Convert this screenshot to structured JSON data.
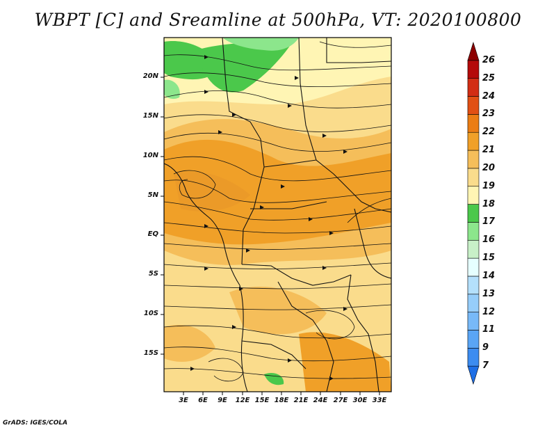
{
  "title": "WBPT [C] and Sreamline at 500hPa, VT: 2020100800",
  "footer": "GrADS: IGES/COLA",
  "lat_ticks": [
    "20N",
    "15N",
    "10N",
    "5N",
    "EQ",
    "5S",
    "10S",
    "15S"
  ],
  "lon_ticks": [
    "3E",
    "6E",
    "9E",
    "12E",
    "15E",
    "18E",
    "21E",
    "24E",
    "27E",
    "30E",
    "33E"
  ],
  "colorbar": {
    "levels": [
      "7",
      "9",
      "11",
      "12",
      "13",
      "14",
      "15",
      "16",
      "17",
      "18",
      "19",
      "20",
      "21",
      "22",
      "23",
      "24",
      "25",
      "26"
    ],
    "colors": [
      "#1e6fe6",
      "#3c8cf0",
      "#5aa5f5",
      "#78b9f8",
      "#96cdfa",
      "#b4e0fc",
      "#e6ffff",
      "#c8f0c8",
      "#8ce68c",
      "#4bc84b",
      "#fff5b4",
      "#fadc8c",
      "#f5be5a",
      "#f0a028",
      "#eb7d14",
      "#e15014",
      "#d22d14",
      "#b40a0a",
      "#8c0000"
    ]
  },
  "map": {
    "field": "wet-bulb potential temperature (WBPT, °C) at 500 hPa",
    "overlay": "streamlines at 500 hPa",
    "valid_time": "2020100800",
    "region": "Central and East Africa, ~0–35E, ~19S–24N"
  }
}
